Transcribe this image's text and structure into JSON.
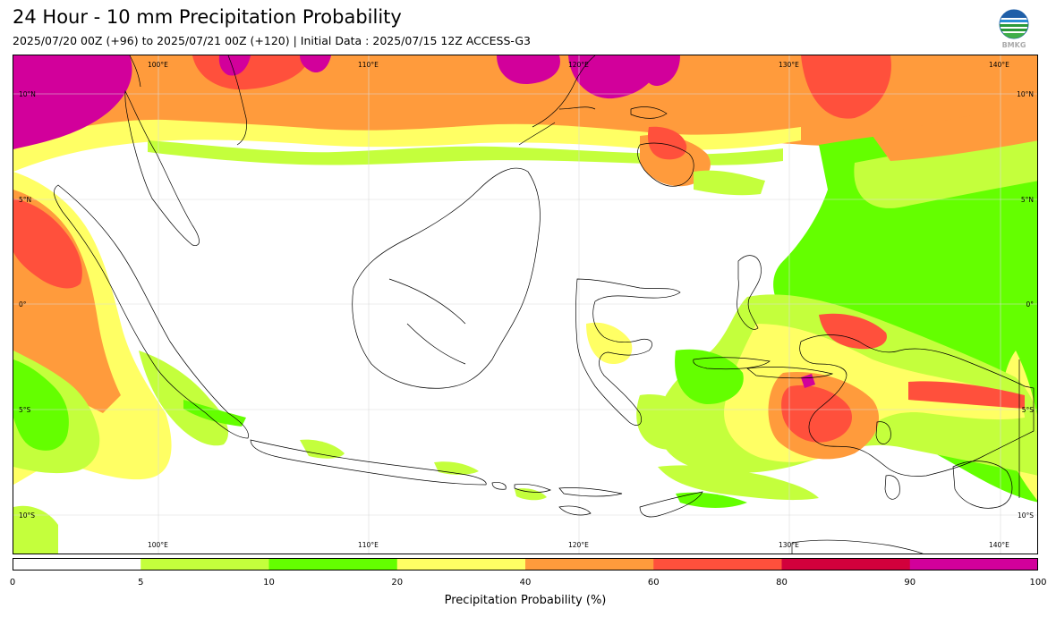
{
  "header": {
    "title": "24 Hour - 10 mm Precipitation Probability",
    "subtitle": "2025/07/20 00Z (+96) to 2025/07/21 00Z (+120) | Initial Data : 2025/07/15 12Z ACCESS-G3",
    "logo_text": "BMKG",
    "logo_icon": "bmkg-logo-icon"
  },
  "map": {
    "lon_labels": [
      "100°E",
      "110°E",
      "120°E",
      "130°E",
      "140°E"
    ],
    "lat_labels_left": [
      "10°N",
      "5°N",
      "0°",
      "5°S",
      "10°S"
    ],
    "lat_labels_right": [
      "10°N",
      "5°N",
      "0°",
      "5°S",
      "10°S"
    ]
  },
  "colorbar": {
    "label": "Precipitation Probability (%)",
    "ticks": [
      "0",
      "5",
      "10",
      "20",
      "40",
      "60",
      "80",
      "90",
      "100"
    ],
    "colors": [
      "#ffffff",
      "#c4ff3c",
      "#64ff00",
      "#ffff64",
      "#ff9b3c",
      "#ff503c",
      "#d2003c",
      "#d2009b"
    ]
  }
}
